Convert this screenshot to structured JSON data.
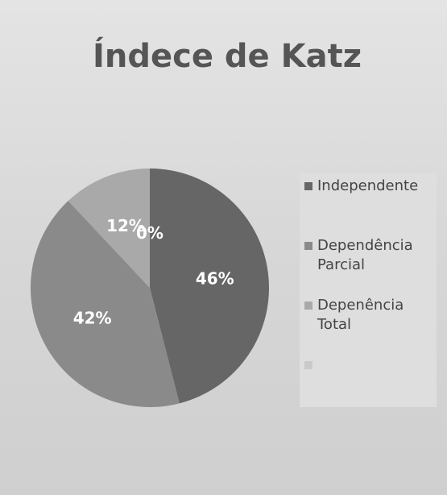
{
  "chart_data": {
    "type": "pie",
    "title": "Índece de Katz",
    "categories": [
      "Independente",
      "Dependência Parcial",
      "Depenência Total",
      null
    ],
    "values": [
      46,
      42,
      12,
      0
    ],
    "value_labels": [
      "46%",
      "42%",
      "12%",
      "0%"
    ],
    "colors": [
      "#666666",
      "#8a8a8a",
      "#a9a9a9",
      "#c9c9c9"
    ],
    "legend": "right"
  }
}
